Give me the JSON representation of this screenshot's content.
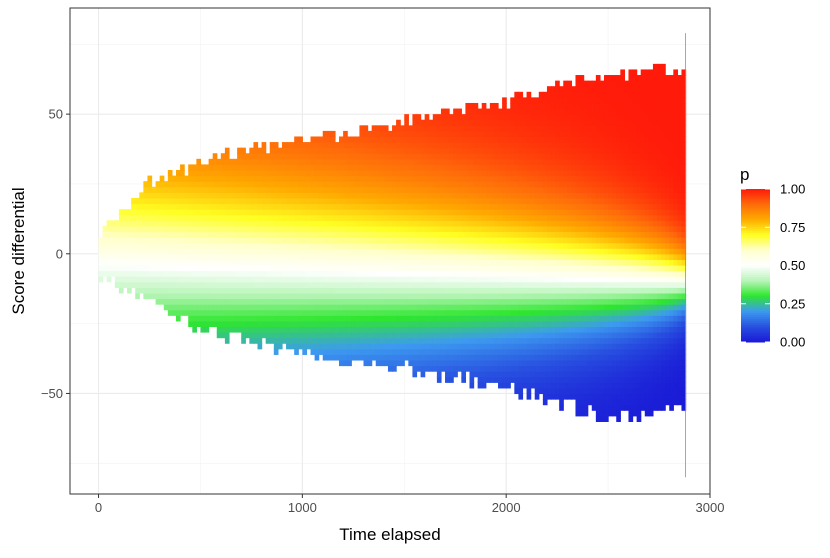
{
  "chart_data": {
    "type": "heatmap",
    "title": "",
    "xlabel": "Time elapsed",
    "ylabel": "Score differential",
    "xlim": [
      -140,
      3000
    ],
    "ylim": [
      -86,
      88
    ],
    "x_ticks": [
      {
        "value": 0,
        "label": "0"
      },
      {
        "value": 1000,
        "label": "1000"
      },
      {
        "value": 2000,
        "label": "2000"
      },
      {
        "value": 3000,
        "label": "3000"
      }
    ],
    "y_ticks": [
      {
        "value": 50,
        "label": "50"
      },
      {
        "value": 0,
        "label": "0"
      },
      {
        "value": -50,
        "label": "−50"
      }
    ],
    "grid": true,
    "theme": "bw",
    "fill": {
      "variable": "p",
      "legend_title": "p",
      "range": [
        0,
        1
      ],
      "ticks": [
        {
          "value": 1.0,
          "label": "1.00"
        },
        {
          "value": 0.75,
          "label": "0.75"
        },
        {
          "value": 0.5,
          "label": "0.50"
        },
        {
          "value": 0.25,
          "label": "0.25"
        },
        {
          "value": 0.0,
          "label": "0.00"
        }
      ],
      "color_stops": [
        {
          "p": 0.0,
          "color": "#1a1ad6"
        },
        {
          "p": 0.1,
          "color": "#2850e0"
        },
        {
          "p": 0.2,
          "color": "#3d9af0"
        },
        {
          "p": 0.3,
          "color": "#2ee62e"
        },
        {
          "p": 0.4,
          "color": "#b8f5b8"
        },
        {
          "p": 0.5,
          "color": "#ffffff"
        },
        {
          "p": 0.6,
          "color": "#ffffcc"
        },
        {
          "p": 0.7,
          "color": "#ffff22"
        },
        {
          "p": 0.8,
          "color": "#ffaa00"
        },
        {
          "p": 0.9,
          "color": "#ff6a0a"
        },
        {
          "p": 1.0,
          "color": "#ff1a0a"
        }
      ]
    },
    "legend_position": "right",
    "data_envelope": {
      "x": [
        0,
        250,
        500,
        1000,
        1500,
        2000,
        2500,
        2880
      ],
      "upper": [
        6,
        24,
        32,
        40,
        46,
        54,
        63,
        65
      ],
      "lower": [
        -6,
        -16,
        -26,
        -34,
        -40,
        -47,
        -58,
        -52
      ]
    }
  }
}
